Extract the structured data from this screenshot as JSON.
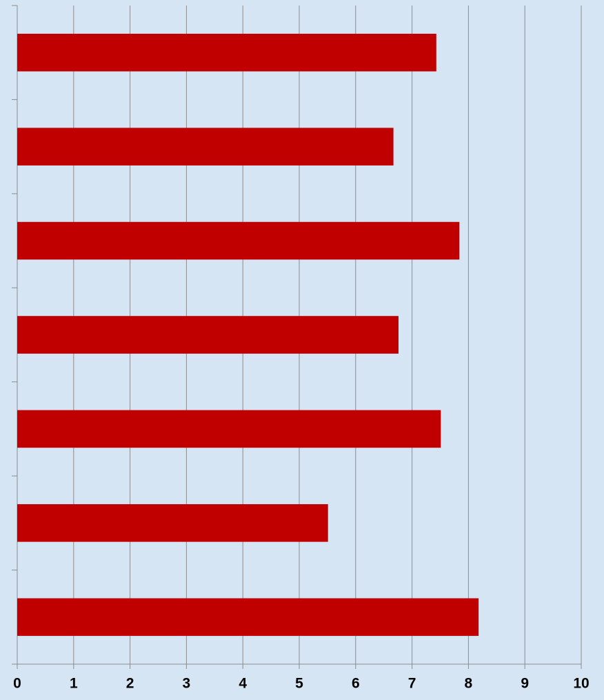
{
  "chart_data": {
    "type": "bar",
    "orientation": "horizontal",
    "categories": [
      null,
      null,
      null,
      null,
      null,
      null,
      null
    ],
    "values": [
      7.43,
      6.67,
      7.84,
      6.76,
      7.51,
      5.51,
      8.18
    ],
    "color": "#c00000",
    "xlim": [
      0,
      10
    ],
    "xticks": [
      0,
      1,
      2,
      3,
      4,
      5,
      6,
      7,
      8,
      9,
      10
    ],
    "grid": true
  }
}
